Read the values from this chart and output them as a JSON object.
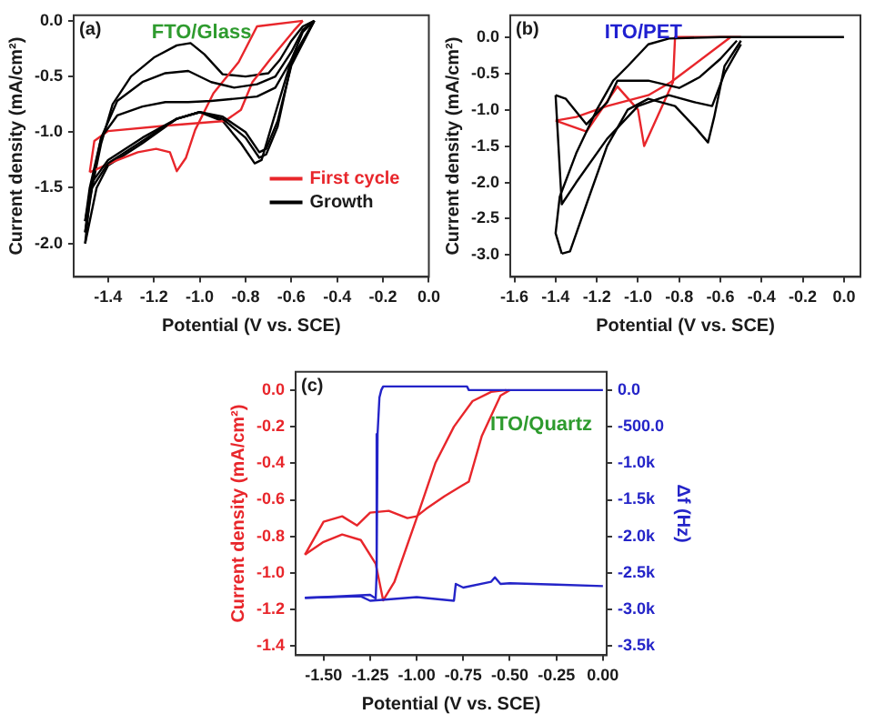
{
  "chart_data": [
    {
      "type": "line",
      "xlabel": "Potential (V vs. SCE)",
      "ylabel": "Current density (mA/cm²)",
      "annotations": [
        "(a)",
        "FTO/Glass"
      ],
      "legend": "bottom right",
      "marker": "none",
      "grid": false,
      "xlim": [
        -1.55,
        0.0
      ],
      "ylim": [
        -2.3,
        0.05
      ],
      "xticks": [
        {
          "value": -1.4,
          "label": "-1.4"
        },
        {
          "value": -1.2,
          "label": "-1.2"
        },
        {
          "value": -1.0,
          "label": "-1.0"
        },
        {
          "value": -0.8,
          "label": "-0.8"
        },
        {
          "value": -0.6,
          "label": "-0.6"
        },
        {
          "value": -0.4,
          "label": "-0.4"
        },
        {
          "value": -0.2,
          "label": "-0.2"
        },
        {
          "value": 0,
          "label": "0.0"
        }
      ],
      "yticks": [
        {
          "value": -2.0,
          "label": "-2.0"
        },
        {
          "value": -1.5,
          "label": "-1.5"
        },
        {
          "value": -1.0,
          "label": "-1.0"
        },
        {
          "value": -0.5,
          "label": "-0.5"
        },
        {
          "value": 0,
          "label": "0.0"
        }
      ],
      "series": [
        {
          "color": "#000000",
          "x": [
            -0.5,
            -0.6,
            -0.66,
            -0.71,
            -0.74,
            -0.8,
            -0.9,
            -1.0,
            -1.1,
            -1.25,
            -1.4,
            -1.47,
            -1.5
          ],
          "values": [
            0,
            -0.4,
            -0.9,
            -1.15,
            -1.18,
            -1.0,
            -0.86,
            -0.82,
            -0.88,
            -1.05,
            -1.25,
            -1.45,
            -1.8
          ]
        },
        {
          "color": "#000000",
          "x": [
            -1.5,
            -1.48,
            -1.43,
            -1.36,
            -1.25,
            -1.15,
            -1.05,
            -0.95,
            -0.85,
            -0.75,
            -0.67,
            -0.6,
            -0.55,
            -0.5
          ],
          "values": [
            -1.8,
            -1.5,
            -1.05,
            -0.85,
            -0.77,
            -0.73,
            -0.73,
            -0.72,
            -0.7,
            -0.68,
            -0.6,
            -0.35,
            -0.1,
            0
          ]
        },
        {
          "color": "#000000",
          "x": [
            -0.5,
            -0.6,
            -0.66,
            -0.71,
            -0.74,
            -0.8,
            -0.9,
            -1.0,
            -1.1,
            -1.25,
            -1.4,
            -1.47,
            -1.5
          ],
          "values": [
            0,
            -0.38,
            -0.95,
            -1.2,
            -1.23,
            -1.05,
            -0.88,
            -0.82,
            -0.88,
            -1.08,
            -1.28,
            -1.5,
            -1.9
          ]
        },
        {
          "color": "#000000",
          "x": [
            -1.5,
            -1.48,
            -1.43,
            -1.36,
            -1.25,
            -1.15,
            -1.05,
            -0.95,
            -0.85,
            -0.75,
            -0.67,
            -0.6,
            -0.55,
            -0.5
          ],
          "values": [
            -1.9,
            -1.55,
            -1.05,
            -0.72,
            -0.55,
            -0.47,
            -0.45,
            -0.55,
            -0.6,
            -0.57,
            -0.5,
            -0.28,
            -0.08,
            0
          ]
        },
        {
          "name": "First cycle",
          "color": "#e8262b",
          "x": [
            -0.55,
            -0.75,
            -0.83,
            -0.94,
            -1.02,
            -1.06,
            -1.1,
            -1.13,
            -1.19,
            -1.27,
            -1.37,
            -1.48
          ],
          "values": [
            0,
            -0.05,
            -0.37,
            -0.65,
            -0.98,
            -1.23,
            -1.35,
            -1.18,
            -1.15,
            -1.18,
            -1.26,
            -1.36
          ]
        },
        {
          "color": "#e8262b",
          "x": [
            -1.48,
            -1.46,
            -1.4,
            -1.14,
            -0.89,
            -0.82,
            -0.77,
            -0.69,
            -0.59,
            -0.55
          ],
          "values": [
            -1.36,
            -1.08,
            -0.99,
            -0.94,
            -0.9,
            -0.8,
            -0.55,
            -0.34,
            -0.09,
            0
          ]
        },
        {
          "name": "Growth",
          "color": "#000000",
          "x": [
            -0.5,
            -0.6,
            -0.68,
            -0.73,
            -0.76,
            -0.82,
            -0.9,
            -1.0,
            -1.1,
            -1.25,
            -1.4,
            -1.45,
            -1.5
          ],
          "values": [
            0,
            -0.35,
            -0.9,
            -1.25,
            -1.28,
            -1.1,
            -0.9,
            -0.82,
            -0.88,
            -1.1,
            -1.3,
            -1.5,
            -2.0
          ]
        },
        {
          "color": "#000000",
          "x": [
            -1.5,
            -1.48,
            -1.43,
            -1.38,
            -1.3,
            -1.2,
            -1.1,
            -1.04,
            -0.98,
            -0.9,
            -0.8,
            -0.7,
            -0.65,
            -0.6,
            -0.55,
            -0.5
          ],
          "values": [
            -2.0,
            -1.6,
            -1.1,
            -0.75,
            -0.5,
            -0.33,
            -0.22,
            -0.2,
            -0.3,
            -0.48,
            -0.5,
            -0.47,
            -0.35,
            -0.18,
            -0.05,
            0
          ]
        }
      ]
    },
    {
      "type": "line",
      "xlabel": "Potential (V vs. SCE)",
      "ylabel": "Current density (mA/cm²)",
      "annotations": [
        "(b)",
        "ITO/PET"
      ],
      "marker": "none",
      "grid": false,
      "xlim": [
        -1.62,
        0.08
      ],
      "ylim": [
        -3.3,
        0.3
      ],
      "xticks": [
        {
          "value": -1.6,
          "label": "-1.6"
        },
        {
          "value": -1.4,
          "label": "-1.4"
        },
        {
          "value": -1.2,
          "label": "-1.2"
        },
        {
          "value": -1.0,
          "label": "-1.0"
        },
        {
          "value": -0.8,
          "label": "-0.8"
        },
        {
          "value": -0.6,
          "label": "-0.6"
        },
        {
          "value": -0.4,
          "label": "-0.4"
        },
        {
          "value": -0.2,
          "label": "-0.2"
        },
        {
          "value": 0,
          "label": "0.0"
        }
      ],
      "yticks": [
        {
          "value": -3.0,
          "label": "-3.0"
        },
        {
          "value": -2.5,
          "label": "-2.5"
        },
        {
          "value": -2.0,
          "label": "-2.0"
        },
        {
          "value": -1.5,
          "label": "-1.5"
        },
        {
          "value": -1.0,
          "label": "-1.0"
        },
        {
          "value": -0.5,
          "label": "-0.5"
        },
        {
          "value": 0,
          "label": "0.0"
        }
      ],
      "series": [
        {
          "color": "#000000",
          "x": [
            -0.5,
            -0.58,
            -0.64,
            -0.72,
            -0.85,
            -1.0,
            -1.15,
            -1.3,
            -1.37,
            -1.4
          ],
          "values": [
            -0.1,
            -0.5,
            -0.95,
            -0.9,
            -0.8,
            -0.95,
            -1.4,
            -2.0,
            -2.3,
            -0.8
          ]
        },
        {
          "color": "#000000",
          "x": [
            -1.4,
            -1.35,
            -1.25,
            -1.15,
            -1.1,
            -0.95,
            -0.8,
            -0.7,
            -0.6,
            -0.52
          ],
          "values": [
            -0.8,
            -0.85,
            -1.2,
            -0.9,
            -0.6,
            -0.6,
            -0.7,
            -0.55,
            -0.3,
            -0.05
          ]
        },
        {
          "color": "#000000",
          "x": [
            -0.5,
            -0.58,
            -0.63,
            -0.66,
            -0.72,
            -0.82,
            -0.95,
            -1.05,
            -1.15,
            -1.25,
            -1.33,
            -1.37
          ],
          "values": [
            -0.05,
            -0.4,
            -1.1,
            -1.45,
            -1.25,
            -0.95,
            -0.85,
            -1.0,
            -1.5,
            -2.3,
            -2.95,
            -2.98
          ]
        },
        {
          "color": "#000000",
          "x": [
            -1.37,
            -1.4,
            -1.38,
            -1.3,
            -1.2,
            -1.12,
            -1.05,
            -0.95,
            -0.85,
            -0.6,
            0.0
          ],
          "values": [
            -2.98,
            -2.7,
            -2.2,
            -1.6,
            -1.0,
            -0.6,
            -0.4,
            -0.1,
            -0.02,
            0,
            0
          ]
        },
        {
          "color": "#e8262b",
          "x": [
            -0.5,
            -0.82,
            -0.83,
            -0.97,
            -1.0,
            -1.1,
            -1.25,
            -1.4
          ],
          "values": [
            0,
            0,
            -0.62,
            -1.5,
            -1.0,
            -0.68,
            -1.3,
            -1.15
          ]
        },
        {
          "color": "#e8262b",
          "x": [
            -1.4,
            -1.3,
            -1.15,
            -0.95,
            -0.84,
            -0.55
          ],
          "values": [
            -1.15,
            -1.1,
            -0.95,
            -0.8,
            -0.62,
            0
          ]
        }
      ]
    },
    {
      "type": "line",
      "xlabel": "Potential (V vs. SCE)",
      "ylabel": "Current density (mA/cm²)",
      "y2label": "Δf (Hz)",
      "annotations": [
        "(c)",
        "ITO/Quartz"
      ],
      "marker": "none",
      "grid": false,
      "xlim": [
        -1.65,
        0.02
      ],
      "ylim": [
        -1.45,
        0.1
      ],
      "y2lim": [
        -3625,
        250
      ],
      "xticks": [
        {
          "value": -1.5,
          "label": "-1.50"
        },
        {
          "value": -1.25,
          "label": "-1.25"
        },
        {
          "value": -1.0,
          "label": "-1.00"
        },
        {
          "value": -0.75,
          "label": "-0.75"
        },
        {
          "value": -0.5,
          "label": "-0.50"
        },
        {
          "value": -0.25,
          "label": "-0.25"
        },
        {
          "value": 0,
          "label": "0.00"
        }
      ],
      "yticks": [
        {
          "value": -1.4,
          "label": "-1.4"
        },
        {
          "value": -1.2,
          "label": "-1.2"
        },
        {
          "value": -1.0,
          "label": "-1.0"
        },
        {
          "value": -0.8,
          "label": "-0.8"
        },
        {
          "value": -0.6,
          "label": "-0.6"
        },
        {
          "value": -0.4,
          "label": "-0.4"
        },
        {
          "value": -0.2,
          "label": "-0.2"
        },
        {
          "value": 0,
          "label": "0.0"
        }
      ],
      "y2ticks": [
        {
          "value": -3500,
          "label": "-3.5k"
        },
        {
          "value": -3000,
          "label": "-3.0k"
        },
        {
          "value": -2500,
          "label": "-2.5k"
        },
        {
          "value": -2000,
          "label": "-2.0k"
        },
        {
          "value": -1500,
          "label": "-1.5k"
        },
        {
          "value": -1000,
          "label": "-1.0k"
        },
        {
          "value": -500,
          "label": "-500.0"
        },
        {
          "value": 0,
          "label": "0.0"
        }
      ],
      "series": [
        {
          "axis": "y2",
          "color": "#2424c8",
          "x": [
            0,
            -0.72,
            -0.73,
            -1.18,
            -1.19,
            -1.2,
            -1.21,
            -1.215,
            -1.22,
            -1.25,
            -1.5,
            -1.6
          ],
          "values": [
            0,
            0,
            50,
            50,
            0,
            -100,
            -600,
            -2500,
            -2850,
            -2800,
            -2830,
            -2840
          ]
        },
        {
          "axis": "y2",
          "color": "#2424c8",
          "x": [
            -1.6,
            -1.3,
            -1.25,
            -1.2,
            -1.0,
            -0.8,
            -0.79,
            -0.75,
            -0.6,
            -0.58,
            -0.55,
            -0.5,
            -0.25,
            0
          ],
          "values": [
            -2840,
            -2820,
            -2880,
            -2870,
            -2830,
            -2880,
            -2650,
            -2700,
            -2620,
            -2560,
            -2650,
            -2640,
            -2660,
            -2680
          ]
        },
        {
          "color": "#e8262b",
          "x": [
            -0.5,
            -0.55,
            -0.65,
            -0.72,
            -0.85,
            -0.95,
            -1.0,
            -1.05,
            -1.15,
            -1.25,
            -1.32,
            -1.4,
            -1.5,
            -1.6
          ],
          "values": [
            0,
            -0.03,
            -0.25,
            -0.5,
            -0.58,
            -0.65,
            -0.69,
            -0.7,
            -0.66,
            -0.67,
            -0.74,
            -0.69,
            -0.72,
            -0.9
          ]
        },
        {
          "color": "#e8262b",
          "x": [
            -1.6,
            -1.5,
            -1.4,
            -1.3,
            -1.22,
            -1.18,
            -1.12,
            -1.0,
            -0.9,
            -0.8,
            -0.7,
            -0.6,
            -0.52
          ],
          "values": [
            -0.9,
            -0.83,
            -0.79,
            -0.82,
            -0.95,
            -1.15,
            -1.05,
            -0.7,
            -0.4,
            -0.2,
            -0.06,
            -0.01,
            0
          ]
        }
      ]
    }
  ]
}
